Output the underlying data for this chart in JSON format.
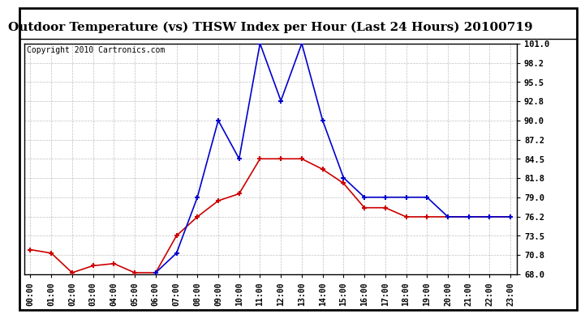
{
  "title": "Outdoor Temperature (vs) THSW Index per Hour (Last 24 Hours) 20100719",
  "copyright": "Copyright 2010 Cartronics.com",
  "hours": [
    "00:00",
    "01:00",
    "02:00",
    "03:00",
    "04:00",
    "05:00",
    "06:00",
    "07:00",
    "08:00",
    "09:00",
    "10:00",
    "11:00",
    "12:00",
    "13:00",
    "14:00",
    "15:00",
    "16:00",
    "17:00",
    "18:00",
    "19:00",
    "20:00",
    "21:00",
    "22:00",
    "23:00"
  ],
  "temp": [
    71.5,
    71.0,
    68.2,
    69.2,
    69.5,
    68.2,
    68.2,
    73.5,
    76.2,
    78.5,
    79.5,
    84.5,
    84.5,
    84.5,
    83.0,
    81.0,
    77.5,
    77.5,
    76.2,
    76.2,
    76.2,
    76.2,
    76.2,
    76.2
  ],
  "thsw": [
    null,
    null,
    null,
    null,
    null,
    null,
    68.2,
    71.0,
    79.0,
    90.0,
    84.5,
    101.0,
    92.8,
    101.0,
    90.0,
    81.8,
    79.0,
    79.0,
    79.0,
    79.0,
    76.2,
    76.2,
    76.2,
    76.2
  ],
  "temp_color": "#cc0000",
  "thsw_color": "#0000cc",
  "ylim_min": 68.0,
  "ylim_max": 101.0,
  "yticks": [
    68.0,
    70.8,
    73.5,
    76.2,
    79.0,
    81.8,
    84.5,
    87.2,
    90.0,
    92.8,
    95.5,
    98.2,
    101.0
  ],
  "bg_color": "#ffffff",
  "grid_color": "#b0b0b0",
  "title_fontsize": 11,
  "copyright_fontsize": 7,
  "outer_border_color": "#000000"
}
